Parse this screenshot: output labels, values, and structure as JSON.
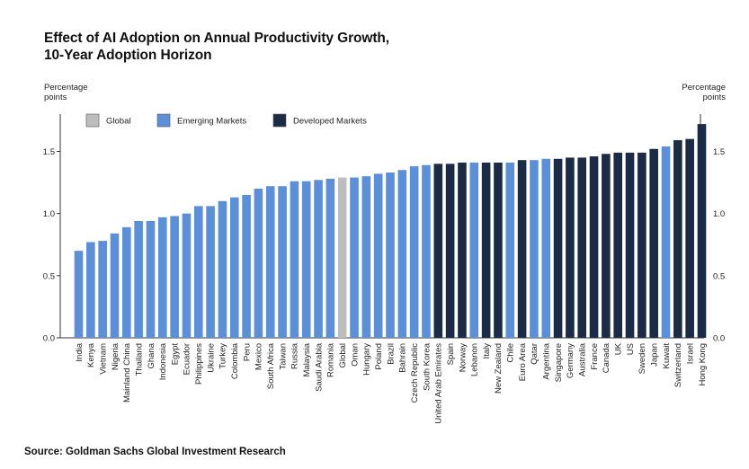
{
  "title_line1": "Effect of AI Adoption on Annual Productivity Growth,",
  "title_line2": "10-Year Adoption Horizon",
  "source": "Source: Goldman Sachs Global Investment Research",
  "colors": {
    "Global": "#bdbdbd",
    "Emerging Markets": "#5b8fd9",
    "Developed Markets": "#1c2b45"
  },
  "chart_data": {
    "type": "bar",
    "left_unit_line1": "Percentage",
    "left_unit_line2": "points",
    "right_unit_line1": "Percentage",
    "right_unit_line2": "points",
    "ylim": [
      0,
      1.8
    ],
    "yticks": [
      "0.0",
      "0.5",
      "1.0",
      "1.5"
    ],
    "ytick_values": [
      0.0,
      0.5,
      1.0,
      1.5
    ],
    "legend": [
      "Global",
      "Emerging Markets",
      "Developed Markets"
    ],
    "legend_position": "top-left",
    "grid": false,
    "categories": [
      "India",
      "Kenya",
      "Vietnam",
      "Nigeria",
      "Mainland China",
      "Thailand",
      "Ghana",
      "Indonesia",
      "Egypt",
      "Ecuador",
      "Philippines",
      "Ukraine",
      "Turkey",
      "Colombia",
      "Peru",
      "Mexico",
      "South Africa",
      "Taiwan",
      "Russia",
      "Malaysia",
      "Saudi Arabia",
      "Romania",
      "Global",
      "Oman",
      "Hungary",
      "Poland",
      "Brazil",
      "Bahrain",
      "Czech Republic",
      "South Korea",
      "United Arab Emirates",
      "Spain",
      "Norway",
      "Lebanon",
      "Italy",
      "New Zealand",
      "Chile",
      "Euro Area",
      "Qatar",
      "Argentina",
      "Singapore",
      "Germany",
      "Australia",
      "France",
      "Canada",
      "UK",
      "US",
      "Sweden",
      "Japan",
      "Kuwait",
      "Switzerland",
      "Israel",
      "Hong Kong"
    ],
    "values": [
      0.7,
      0.77,
      0.78,
      0.84,
      0.89,
      0.94,
      0.94,
      0.97,
      0.98,
      1.0,
      1.06,
      1.06,
      1.1,
      1.13,
      1.15,
      1.2,
      1.22,
      1.22,
      1.26,
      1.26,
      1.27,
      1.28,
      1.29,
      1.29,
      1.3,
      1.32,
      1.33,
      1.35,
      1.38,
      1.39,
      1.4,
      1.4,
      1.41,
      1.41,
      1.41,
      1.41,
      1.41,
      1.43,
      1.43,
      1.44,
      1.44,
      1.45,
      1.45,
      1.46,
      1.48,
      1.49,
      1.49,
      1.49,
      1.52,
      1.54,
      1.59,
      1.6,
      1.72
    ],
    "groups": [
      "Emerging Markets",
      "Emerging Markets",
      "Emerging Markets",
      "Emerging Markets",
      "Emerging Markets",
      "Emerging Markets",
      "Emerging Markets",
      "Emerging Markets",
      "Emerging Markets",
      "Emerging Markets",
      "Emerging Markets",
      "Emerging Markets",
      "Emerging Markets",
      "Emerging Markets",
      "Emerging Markets",
      "Emerging Markets",
      "Emerging Markets",
      "Emerging Markets",
      "Emerging Markets",
      "Emerging Markets",
      "Emerging Markets",
      "Emerging Markets",
      "Global",
      "Emerging Markets",
      "Emerging Markets",
      "Emerging Markets",
      "Emerging Markets",
      "Emerging Markets",
      "Emerging Markets",
      "Emerging Markets",
      "Developed Markets",
      "Developed Markets",
      "Developed Markets",
      "Emerging Markets",
      "Developed Markets",
      "Developed Markets",
      "Emerging Markets",
      "Developed Markets",
      "Emerging Markets",
      "Emerging Markets",
      "Developed Markets",
      "Developed Markets",
      "Developed Markets",
      "Developed Markets",
      "Developed Markets",
      "Developed Markets",
      "Developed Markets",
      "Developed Markets",
      "Developed Markets",
      "Emerging Markets",
      "Developed Markets",
      "Developed Markets",
      "Developed Markets"
    ]
  }
}
